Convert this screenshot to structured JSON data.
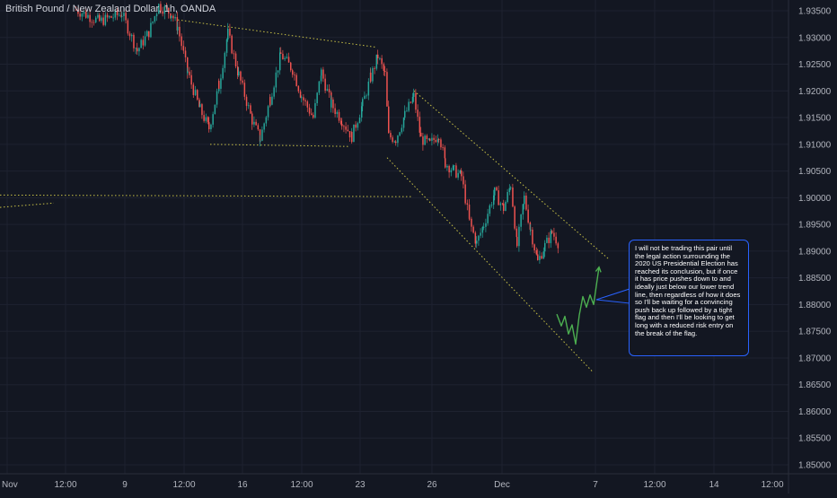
{
  "chart_data": {
    "type": "candlestick",
    "title": "British Pound / New Zealand Dollar, 1h, OANDA",
    "y_axis": {
      "position": "right",
      "range": [
        1.8475,
        1.9365
      ],
      "ticks": [
        "1.93500",
        "1.93000",
        "1.92500",
        "1.92000",
        "1.91500",
        "1.91000",
        "1.90500",
        "1.90000",
        "1.89500",
        "1.89000",
        "1.88500",
        "1.88000",
        "1.87500",
        "1.87000",
        "1.86500",
        "1.86000",
        "1.85500",
        "1.85000"
      ]
    },
    "x_axis": {
      "ticks": [
        "Nov",
        "12:00",
        "9",
        "12:00",
        "16",
        "12:00",
        "23",
        "26",
        "Dec",
        "7",
        "12:00",
        "14",
        "12:00"
      ]
    },
    "price_path": [
      {
        "t": 84,
        "p": 1.9352
      },
      {
        "t": 110,
        "p": 1.933
      },
      {
        "t": 135,
        "p": 1.9345
      },
      {
        "t": 152,
        "p": 1.9275
      },
      {
        "t": 165,
        "p": 1.931
      },
      {
        "t": 176,
        "p": 1.936
      },
      {
        "t": 190,
        "p": 1.9345
      },
      {
        "t": 197,
        "p": 1.932
      },
      {
        "t": 208,
        "p": 1.9235
      },
      {
        "t": 222,
        "p": 1.9165
      },
      {
        "t": 232,
        "p": 1.913
      },
      {
        "t": 243,
        "p": 1.921
      },
      {
        "t": 253,
        "p": 1.9308
      },
      {
        "t": 265,
        "p": 1.923
      },
      {
        "t": 280,
        "p": 1.9145
      },
      {
        "t": 289,
        "p": 1.911
      },
      {
        "t": 300,
        "p": 1.9185
      },
      {
        "t": 312,
        "p": 1.9268
      },
      {
        "t": 325,
        "p": 1.924
      },
      {
        "t": 335,
        "p": 1.919
      },
      {
        "t": 348,
        "p": 1.915
      },
      {
        "t": 357,
        "p": 1.9235
      },
      {
        "t": 368,
        "p": 1.9175
      },
      {
        "t": 380,
        "p": 1.9145
      },
      {
        "t": 391,
        "p": 1.9115
      },
      {
        "t": 403,
        "p": 1.9175
      },
      {
        "t": 412,
        "p": 1.9225
      },
      {
        "t": 420,
        "p": 1.9265
      },
      {
        "t": 428,
        "p": 1.923
      },
      {
        "t": 432,
        "p": 1.9115
      },
      {
        "t": 440,
        "p": 1.911
      },
      {
        "t": 450,
        "p": 1.9155
      },
      {
        "t": 460,
        "p": 1.919
      },
      {
        "t": 468,
        "p": 1.911
      },
      {
        "t": 478,
        "p": 1.91
      },
      {
        "t": 488,
        "p": 1.912
      },
      {
        "t": 495,
        "p": 1.9065
      },
      {
        "t": 505,
        "p": 1.905
      },
      {
        "t": 513,
        "p": 1.904
      },
      {
        "t": 522,
        "p": 1.8955
      },
      {
        "t": 530,
        "p": 1.8915
      },
      {
        "t": 538,
        "p": 1.895
      },
      {
        "t": 550,
        "p": 1.901
      },
      {
        "t": 560,
        "p": 1.898
      },
      {
        "t": 568,
        "p": 1.9025
      },
      {
        "t": 575,
        "p": 1.891
      },
      {
        "t": 583,
        "p": 1.9
      },
      {
        "t": 590,
        "p": 1.894
      },
      {
        "t": 598,
        "p": 1.888
      },
      {
        "t": 606,
        "p": 1.891
      },
      {
        "t": 614,
        "p": 1.8935
      },
      {
        "t": 621,
        "p": 1.8915
      }
    ],
    "drawings": {
      "flag_upper": [
        {
          "t": 198,
          "p": 1.9333
        },
        {
          "t": 418,
          "p": 1.9282
        }
      ],
      "flag_lower": [
        {
          "t": 234,
          "p": 1.91
        },
        {
          "t": 388,
          "p": 1.9096
        }
      ],
      "channel_upper": [
        {
          "t": 461,
          "p": 1.92
        },
        {
          "t": 678,
          "p": 1.8885
        }
      ],
      "channel_lower": [
        {
          "t": 431,
          "p": 1.9075
        },
        {
          "t": 660,
          "p": 1.8674
        }
      ],
      "support_line": [
        {
          "t": 0,
          "p": 1.9005
        },
        {
          "t": 460,
          "p": 1.9002
        }
      ],
      "support_stub": [
        {
          "t": 0,
          "p": 1.8982
        },
        {
          "t": 60,
          "p": 1.899
        }
      ],
      "projection_path": [
        {
          "t": 620,
          "p": 1.8782
        },
        {
          "t": 625,
          "p": 1.876
        },
        {
          "t": 629,
          "p": 1.8778
        },
        {
          "t": 633,
          "p": 1.8745
        },
        {
          "t": 637,
          "p": 1.8762
        },
        {
          "t": 641,
          "p": 1.8726
        },
        {
          "t": 645,
          "p": 1.878
        },
        {
          "t": 649,
          "p": 1.8815
        },
        {
          "t": 653,
          "p": 1.8795
        },
        {
          "t": 657,
          "p": 1.8818
        },
        {
          "t": 661,
          "p": 1.88
        },
        {
          "t": 667,
          "p": 1.887
        }
      ]
    },
    "annotation": "I will not be trading this pair until the legal action surrounding the 2020 US Presidential Election has reached its conclusion, but if once it has price pushes down to and ideally just below our lower trend line, then regardless of how it does so I'll be waiting for a convincing push back up followed by a tight flag and then I'll be looking to get long with a reduced risk entry on the break of the flag.",
    "grid": true,
    "colors": {
      "background": "#131722",
      "grid": "#1e2230",
      "up": "#26a69a",
      "down": "#ef5350",
      "drawing": "#c7c046",
      "projection": "#4caf50",
      "note_border": "#2962ff",
      "axis_text": "#b2b5be"
    }
  }
}
